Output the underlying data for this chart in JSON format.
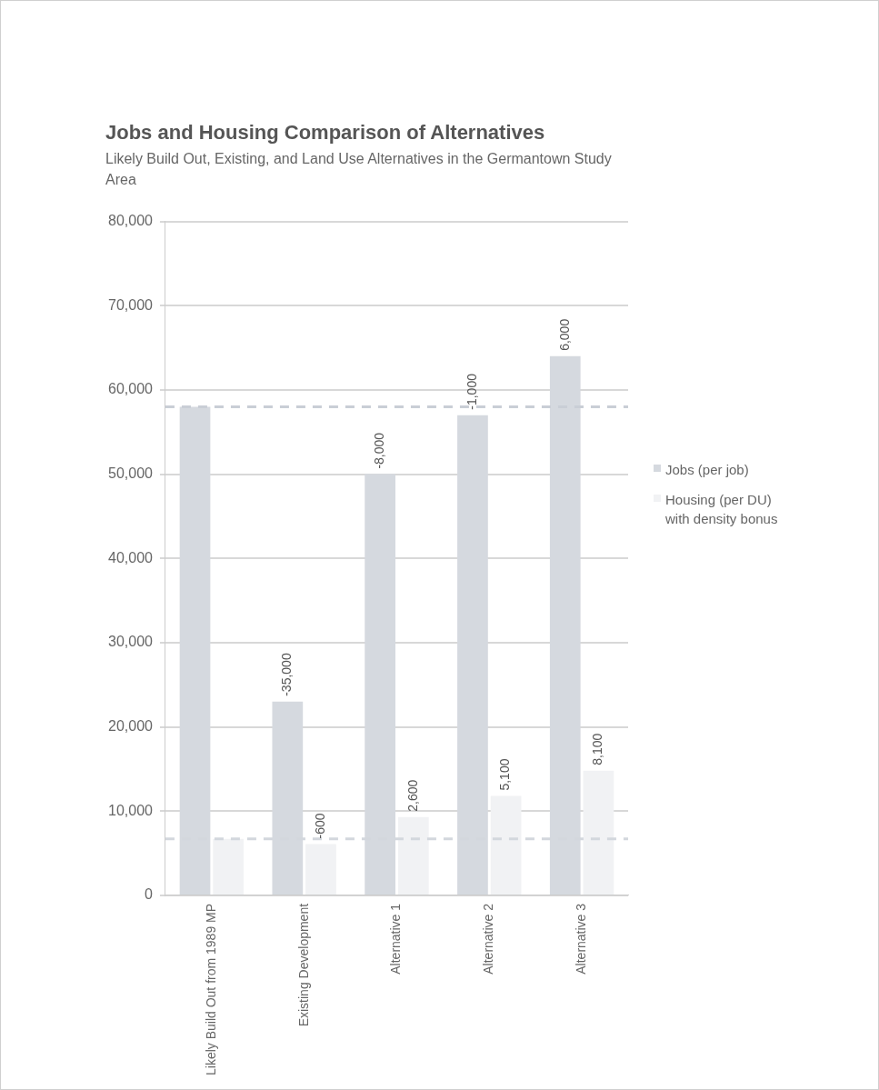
{
  "chart_data": {
    "type": "bar",
    "title": "Jobs and Housing Comparison of Alternatives",
    "subtitle": "Likely Build Out, Existing, and Land Use Alternatives in the Germantown Study Area",
    "categories": [
      "Likely Build Out from 1989 MP",
      "Existing Development",
      "Alternative 1",
      "Alternative 2",
      "Alternative 3"
    ],
    "series": [
      {
        "name": "Jobs (per job)",
        "color": "#d5d9df",
        "values": [
          58000,
          23000,
          50000,
          57000,
          64000
        ]
      },
      {
        "name": "Housing (per DU) with density bonus",
        "color": "#f1f2f4",
        "values": [
          6700,
          6100,
          9300,
          11800,
          14800
        ]
      }
    ],
    "annotations": [
      {
        "text": "-35,000",
        "x": "Existing Development",
        "y": 23000
      },
      {
        "text": "-8,000",
        "x": "Alternative 1",
        "y": 50000
      },
      {
        "text": "-1,000",
        "x": "Alternative 2",
        "y": 57000
      },
      {
        "text": "6,000",
        "x": "Alternative 3",
        "y": 64000
      },
      {
        "text": "-600",
        "x": "Existing Development",
        "y": 6100
      },
      {
        "text": "2,600",
        "x": "Alternative 1",
        "y": 9300
      },
      {
        "text": "5,100",
        "x": "Alternative 2",
        "y": 11800
      },
      {
        "text": "8,100",
        "x": "Alternative 3",
        "y": 14800
      }
    ],
    "ylim": [
      0,
      80000
    ],
    "yticks": [
      0,
      {
        "value": 10000,
        "label": "10,000"
      },
      {
        "value": 20000,
        "label": "20,000"
      },
      {
        "value": 30000,
        "label": "30,000"
      },
      {
        "value": 40000,
        "label": "40,000"
      },
      {
        "value": 50000,
        "label": "50,000"
      },
      {
        "value": 60000,
        "label": "60,000"
      },
      {
        "value": 70000,
        "label": "70,000"
      },
      {
        "value": 80000,
        "label": "80,000"
      }
    ],
    "ref_lines": [
      {
        "axis": "y",
        "value": 58000,
        "color": "#c9ced6",
        "line_style": "dashed"
      },
      {
        "axis": "y",
        "value": 6700,
        "color": "#d3d7dd",
        "line_style": "dashed"
      }
    ],
    "grid": "y",
    "legend": "right"
  }
}
